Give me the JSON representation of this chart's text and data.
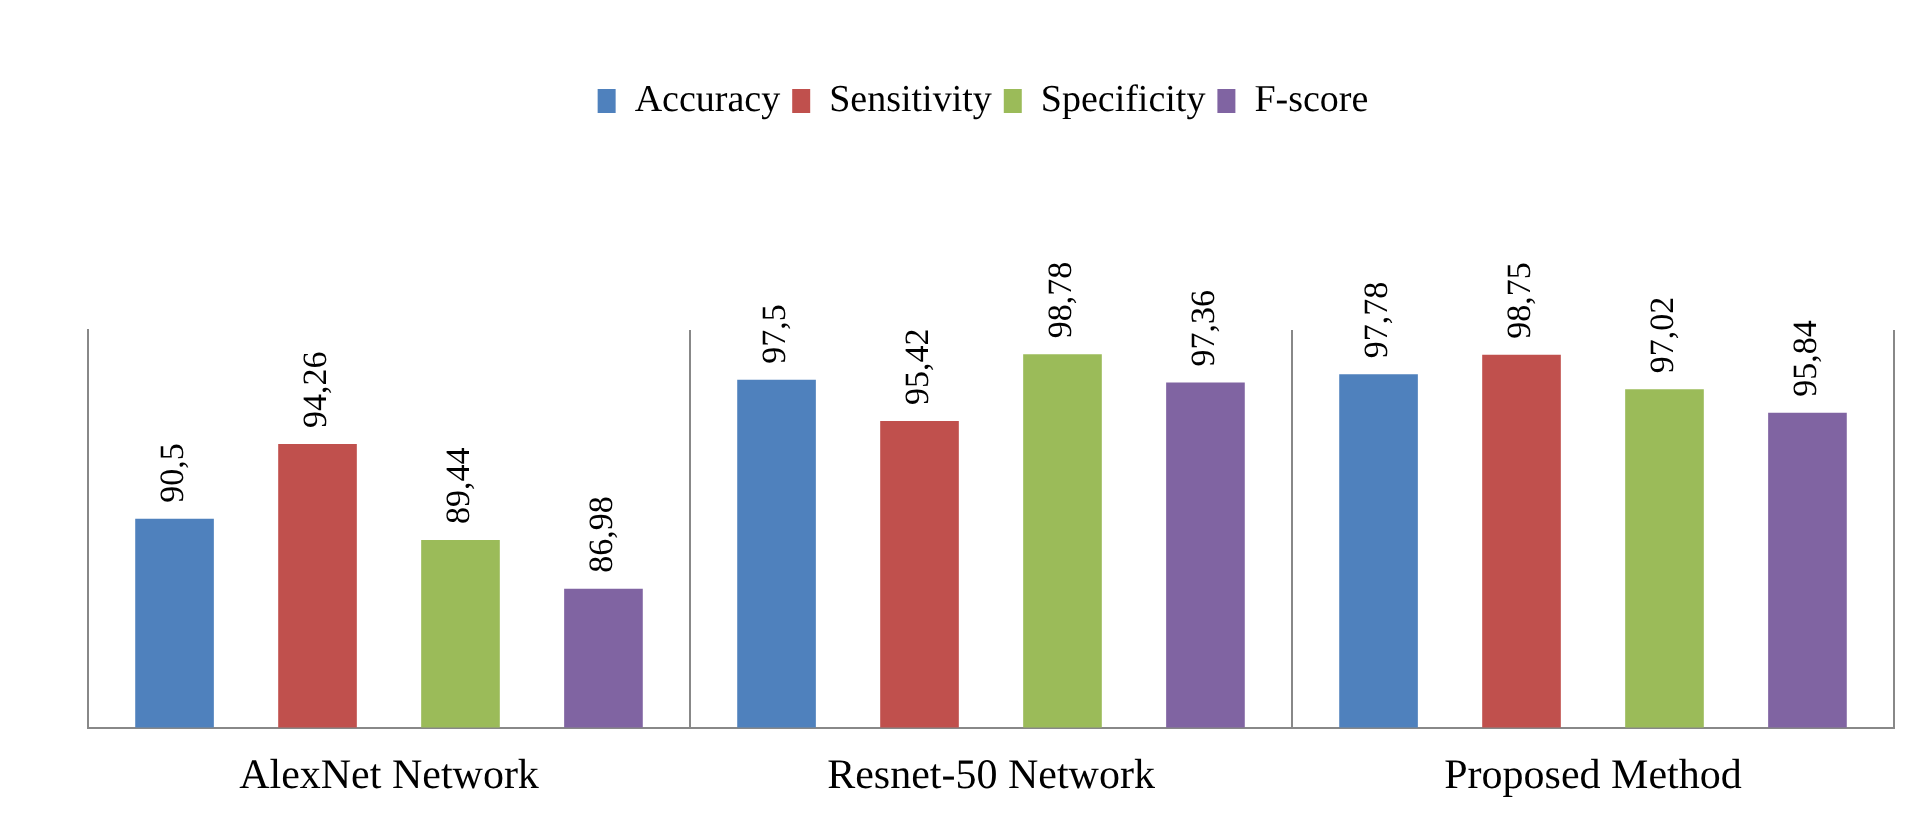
{
  "chart_data": {
    "type": "bar",
    "categories": [
      "AlexNet Network",
      "Resnet-50 Network",
      "Proposed Method"
    ],
    "series": [
      {
        "name": "Accuracy",
        "color": "#4f81bd",
        "values": [
          90.5,
          97.5,
          97.78
        ],
        "value_labels": [
          "90,5",
          "97,5",
          "97,78"
        ]
      },
      {
        "name": "Sensitivity",
        "color": "#c0504d",
        "values": [
          94.26,
          95.42,
          98.75
        ],
        "value_labels": [
          "94,26",
          "95,42",
          "98,75"
        ]
      },
      {
        "name": "Specificity",
        "color": "#9bbb59",
        "values": [
          89.44,
          98.78,
          97.02
        ],
        "value_labels": [
          "89,44",
          "98,78",
          "97,02"
        ]
      },
      {
        "name": "F-score",
        "color": "#8064a2",
        "values": [
          86.98,
          97.36,
          95.84
        ],
        "value_labels": [
          "86,98",
          "97,36",
          "95,84"
        ]
      }
    ],
    "ylim": [
      80,
      100
    ],
    "tick_labels": "x",
    "grid": "x",
    "legend": "top"
  }
}
